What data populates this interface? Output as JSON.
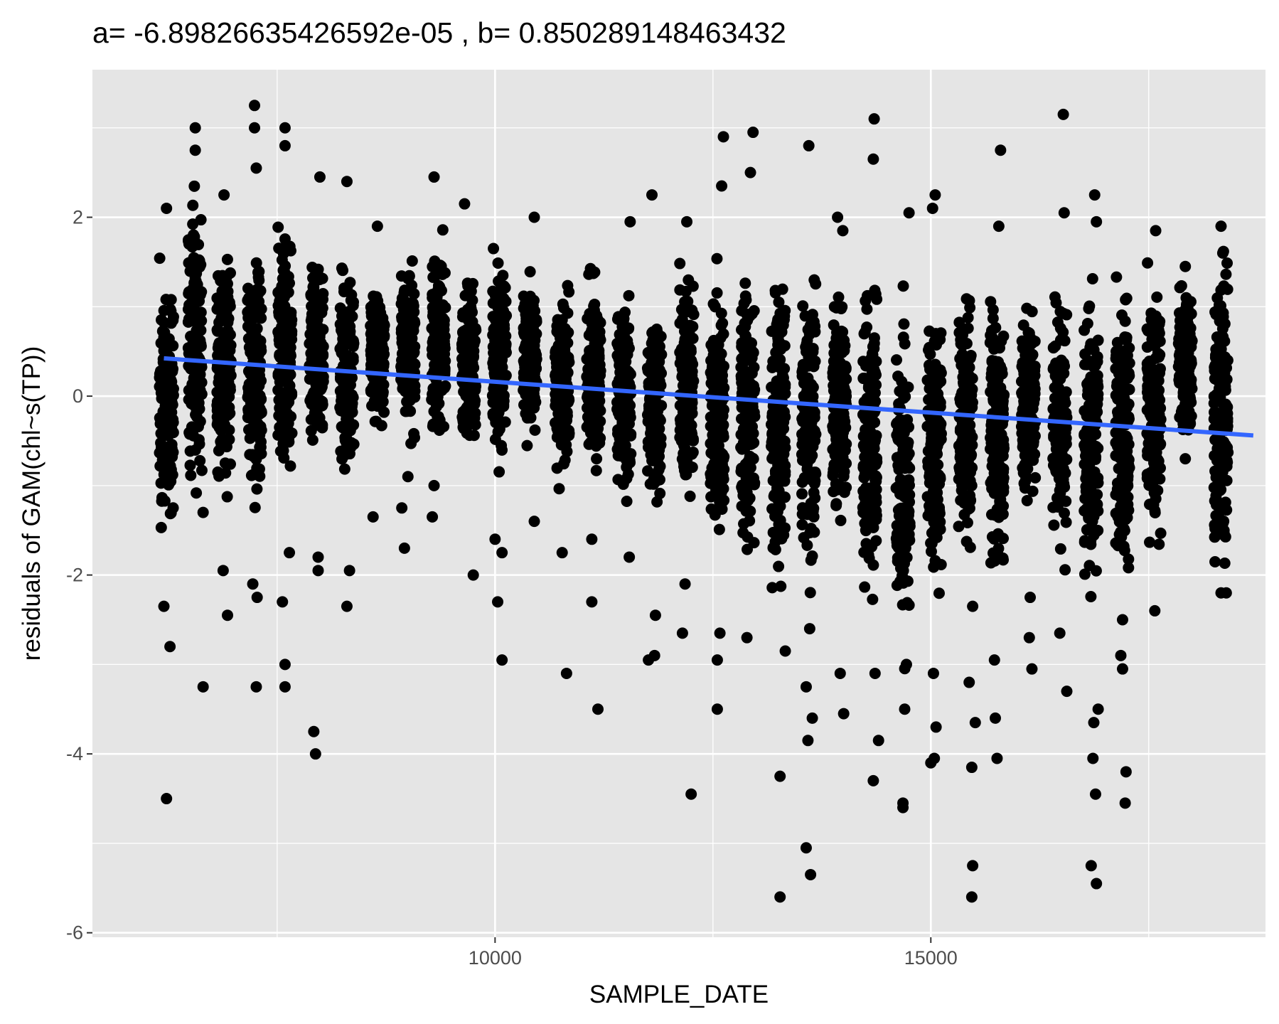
{
  "chart_data": {
    "type": "scatter",
    "title": "a= -6.89826635426592e-05 , b= 0.850289148463432",
    "xlabel": "SAMPLE_DATE",
    "ylabel": "residuals of GAM(chl~s(TP))",
    "xlim": [
      5380,
      18840
    ],
    "ylim": [
      -6.05,
      3.65
    ],
    "x_major_ticks": [
      10000,
      15000
    ],
    "x_minor_ticks": [
      7500,
      12500,
      17500
    ],
    "y_major_ticks": [
      -6,
      -4,
      -2,
      0,
      2
    ],
    "y_minor_ticks": [
      -5,
      -3,
      -1,
      1,
      3
    ],
    "grid": true,
    "background": "#e5e5e5",
    "gridline_color": "#ffffff",
    "point_color": "#000000",
    "trend_color": "#3366ff",
    "trend_line": {
      "slope": -6.89826635426592e-05,
      "intercept": 0.850289148463432,
      "x_range": [
        6200,
        18700
      ]
    },
    "sample_clusters": [
      {
        "x": 6230,
        "ymin": -1.8,
        "ymax": 1.6
      },
      {
        "x": 6560,
        "ymin": -1.2,
        "ymax": 2.5
      },
      {
        "x": 6890,
        "ymin": -1.3,
        "ymax": 1.8
      },
      {
        "x": 7240,
        "ymin": -1.5,
        "ymax": 1.9
      },
      {
        "x": 7590,
        "ymin": -1.4,
        "ymax": 2.1
      },
      {
        "x": 7950,
        "ymin": -0.8,
        "ymax": 1.8
      },
      {
        "x": 8300,
        "ymin": -1.0,
        "ymax": 1.6
      },
      {
        "x": 8650,
        "ymin": -0.6,
        "ymax": 1.5
      },
      {
        "x": 9000,
        "ymin": -0.6,
        "ymax": 1.7
      },
      {
        "x": 9350,
        "ymin": -0.6,
        "ymax": 1.9
      },
      {
        "x": 9700,
        "ymin": -0.8,
        "ymax": 1.5
      },
      {
        "x": 10050,
        "ymin": -0.9,
        "ymax": 1.8
      },
      {
        "x": 10400,
        "ymin": -0.7,
        "ymax": 1.4
      },
      {
        "x": 10770,
        "ymin": -1.1,
        "ymax": 1.4
      },
      {
        "x": 11130,
        "ymin": -1.0,
        "ymax": 1.6
      },
      {
        "x": 11480,
        "ymin": -1.3,
        "ymax": 1.3
      },
      {
        "x": 11830,
        "ymin": -1.5,
        "ymax": 1.4
      },
      {
        "x": 12200,
        "ymin": -1.4,
        "ymax": 1.6
      },
      {
        "x": 12550,
        "ymin": -2.0,
        "ymax": 1.6
      },
      {
        "x": 12900,
        "ymin": -2.3,
        "ymax": 1.8
      },
      {
        "x": 13250,
        "ymin": -2.3,
        "ymax": 1.6
      },
      {
        "x": 13600,
        "ymin": -2.2,
        "ymax": 1.5
      },
      {
        "x": 13950,
        "ymin": -1.6,
        "ymax": 1.4
      },
      {
        "x": 14300,
        "ymin": -2.5,
        "ymax": 1.6
      },
      {
        "x": 14680,
        "ymin": -3.3,
        "ymax": 1.4
      },
      {
        "x": 15040,
        "ymin": -2.3,
        "ymax": 1.3
      },
      {
        "x": 15400,
        "ymin": -2.0,
        "ymax": 1.5
      },
      {
        "x": 15760,
        "ymin": -2.2,
        "ymax": 1.4
      },
      {
        "x": 16120,
        "ymin": -1.3,
        "ymax": 1.2
      },
      {
        "x": 16480,
        "ymin": -2.0,
        "ymax": 1.3
      },
      {
        "x": 16840,
        "ymin": -2.5,
        "ymax": 1.4
      },
      {
        "x": 17200,
        "ymin": -2.3,
        "ymax": 1.6
      },
      {
        "x": 17560,
        "ymin": -1.9,
        "ymax": 1.6
      },
      {
        "x": 17920,
        "ymin": -0.6,
        "ymax": 1.4
      },
      {
        "x": 18330,
        "ymin": -2.3,
        "ymax": 1.9
      }
    ],
    "outlier_points": [
      {
        "x": 6230,
        "y": -4.5
      },
      {
        "x": 6230,
        "y": 2.1
      },
      {
        "x": 6270,
        "y": -2.8
      },
      {
        "x": 6200,
        "y": -2.35
      },
      {
        "x": 6560,
        "y": 3.0
      },
      {
        "x": 6560,
        "y": 2.75
      },
      {
        "x": 6650,
        "y": -3.25
      },
      {
        "x": 6650,
        "y": -1.3
      },
      {
        "x": 6890,
        "y": 2.25
      },
      {
        "x": 6930,
        "y": -2.45
      },
      {
        "x": 6880,
        "y": -1.95
      },
      {
        "x": 7240,
        "y": 3.25
      },
      {
        "x": 7240,
        "y": 3.0
      },
      {
        "x": 7260,
        "y": 2.55
      },
      {
        "x": 7260,
        "y": -3.25
      },
      {
        "x": 7270,
        "y": -2.25
      },
      {
        "x": 7220,
        "y": -2.1
      },
      {
        "x": 7590,
        "y": 3.0
      },
      {
        "x": 7590,
        "y": 2.8
      },
      {
        "x": 7590,
        "y": -3.0
      },
      {
        "x": 7590,
        "y": -3.25
      },
      {
        "x": 7560,
        "y": -2.3
      },
      {
        "x": 7640,
        "y": -1.75
      },
      {
        "x": 7920,
        "y": -3.75
      },
      {
        "x": 7940,
        "y": -4.0
      },
      {
        "x": 7970,
        "y": -1.95
      },
      {
        "x": 7970,
        "y": -1.8
      },
      {
        "x": 7990,
        "y": 2.45
      },
      {
        "x": 8300,
        "y": 2.4
      },
      {
        "x": 8300,
        "y": -2.35
      },
      {
        "x": 8330,
        "y": -1.95
      },
      {
        "x": 8600,
        "y": -1.35
      },
      {
        "x": 8650,
        "y": 1.9
      },
      {
        "x": 8930,
        "y": -1.25
      },
      {
        "x": 8960,
        "y": -1.7
      },
      {
        "x": 9000,
        "y": -0.9
      },
      {
        "x": 9300,
        "y": 2.45
      },
      {
        "x": 9280,
        "y": -1.35
      },
      {
        "x": 9300,
        "y": -1.0
      },
      {
        "x": 9650,
        "y": 2.15
      },
      {
        "x": 9750,
        "y": -2.0
      },
      {
        "x": 10000,
        "y": -1.6
      },
      {
        "x": 10030,
        "y": -2.3
      },
      {
        "x": 10080,
        "y": -2.95
      },
      {
        "x": 10080,
        "y": -1.75
      },
      {
        "x": 10450,
        "y": 2.0
      },
      {
        "x": 10450,
        "y": -1.4
      },
      {
        "x": 10770,
        "y": -1.75
      },
      {
        "x": 10820,
        "y": -3.1
      },
      {
        "x": 11180,
        "y": -3.5
      },
      {
        "x": 11110,
        "y": -2.3
      },
      {
        "x": 11110,
        "y": -1.6
      },
      {
        "x": 11550,
        "y": 1.95
      },
      {
        "x": 11540,
        "y": -1.8
      },
      {
        "x": 11800,
        "y": 2.25
      },
      {
        "x": 11830,
        "y": -2.9
      },
      {
        "x": 11760,
        "y": -2.95
      },
      {
        "x": 11840,
        "y": -2.45
      },
      {
        "x": 12200,
        "y": 1.95
      },
      {
        "x": 12250,
        "y": -4.45
      },
      {
        "x": 12150,
        "y": -2.65
      },
      {
        "x": 12180,
        "y": -2.1
      },
      {
        "x": 12620,
        "y": 2.9
      },
      {
        "x": 12550,
        "y": -3.5
      },
      {
        "x": 12550,
        "y": -2.95
      },
      {
        "x": 12580,
        "y": -2.65
      },
      {
        "x": 12600,
        "y": 2.35
      },
      {
        "x": 12960,
        "y": 2.95
      },
      {
        "x": 12930,
        "y": 2.5
      },
      {
        "x": 12890,
        "y": -2.7
      },
      {
        "x": 13270,
        "y": -4.25
      },
      {
        "x": 13270,
        "y": -5.6
      },
      {
        "x": 13330,
        "y": -2.85
      },
      {
        "x": 13600,
        "y": 2.8
      },
      {
        "x": 13570,
        "y": -5.05
      },
      {
        "x": 13620,
        "y": -5.35
      },
      {
        "x": 13590,
        "y": -3.85
      },
      {
        "x": 13570,
        "y": -3.25
      },
      {
        "x": 13640,
        "y": -3.6
      },
      {
        "x": 13610,
        "y": -2.6
      },
      {
        "x": 14000,
        "y": -3.55
      },
      {
        "x": 13960,
        "y": -3.1
      },
      {
        "x": 13930,
        "y": 2.0
      },
      {
        "x": 13990,
        "y": 1.85
      },
      {
        "x": 14350,
        "y": 3.1
      },
      {
        "x": 14340,
        "y": 2.65
      },
      {
        "x": 14340,
        "y": -4.3
      },
      {
        "x": 14400,
        "y": -3.85
      },
      {
        "x": 14360,
        "y": -3.1
      },
      {
        "x": 14680,
        "y": -4.55
      },
      {
        "x": 14680,
        "y": -4.6
      },
      {
        "x": 14700,
        "y": -3.5
      },
      {
        "x": 14750,
        "y": 2.05
      },
      {
        "x": 14720,
        "y": -3.0
      },
      {
        "x": 15020,
        "y": 2.1
      },
      {
        "x": 15050,
        "y": 2.25
      },
      {
        "x": 15000,
        "y": -4.1
      },
      {
        "x": 15040,
        "y": -4.05
      },
      {
        "x": 15060,
        "y": -3.7
      },
      {
        "x": 15030,
        "y": -3.1
      },
      {
        "x": 15470,
        "y": -5.6
      },
      {
        "x": 15480,
        "y": -5.25
      },
      {
        "x": 15470,
        "y": -4.15
      },
      {
        "x": 15440,
        "y": -3.2
      },
      {
        "x": 15510,
        "y": -3.65
      },
      {
        "x": 15480,
        "y": -2.35
      },
      {
        "x": 15800,
        "y": 2.75
      },
      {
        "x": 15780,
        "y": 1.9
      },
      {
        "x": 15760,
        "y": -4.05
      },
      {
        "x": 15740,
        "y": -3.6
      },
      {
        "x": 15730,
        "y": -2.95
      },
      {
        "x": 16130,
        "y": -2.7
      },
      {
        "x": 16160,
        "y": -3.05
      },
      {
        "x": 16140,
        "y": -2.25
      },
      {
        "x": 16520,
        "y": 3.15
      },
      {
        "x": 16530,
        "y": 2.05
      },
      {
        "x": 16560,
        "y": -3.3
      },
      {
        "x": 16480,
        "y": -2.65
      },
      {
        "x": 16880,
        "y": 2.25
      },
      {
        "x": 16900,
        "y": 1.95
      },
      {
        "x": 16840,
        "y": -5.25
      },
      {
        "x": 16900,
        "y": -5.45
      },
      {
        "x": 16890,
        "y": -4.45
      },
      {
        "x": 16860,
        "y": -4.05
      },
      {
        "x": 16920,
        "y": -3.5
      },
      {
        "x": 16870,
        "y": -3.65
      },
      {
        "x": 17230,
        "y": -4.55
      },
      {
        "x": 17240,
        "y": -4.2
      },
      {
        "x": 17200,
        "y": -3.05
      },
      {
        "x": 17180,
        "y": -2.9
      },
      {
        "x": 17200,
        "y": -2.5
      },
      {
        "x": 17580,
        "y": 1.85
      },
      {
        "x": 17570,
        "y": -2.4
      },
      {
        "x": 17920,
        "y": 1.45
      },
      {
        "x": 17930,
        "y": 1.1
      },
      {
        "x": 17920,
        "y": -0.7
      },
      {
        "x": 18330,
        "y": 1.9
      },
      {
        "x": 18350,
        "y": 1.6
      },
      {
        "x": 18330,
        "y": -2.2
      },
      {
        "x": 18390,
        "y": -2.2
      }
    ]
  }
}
